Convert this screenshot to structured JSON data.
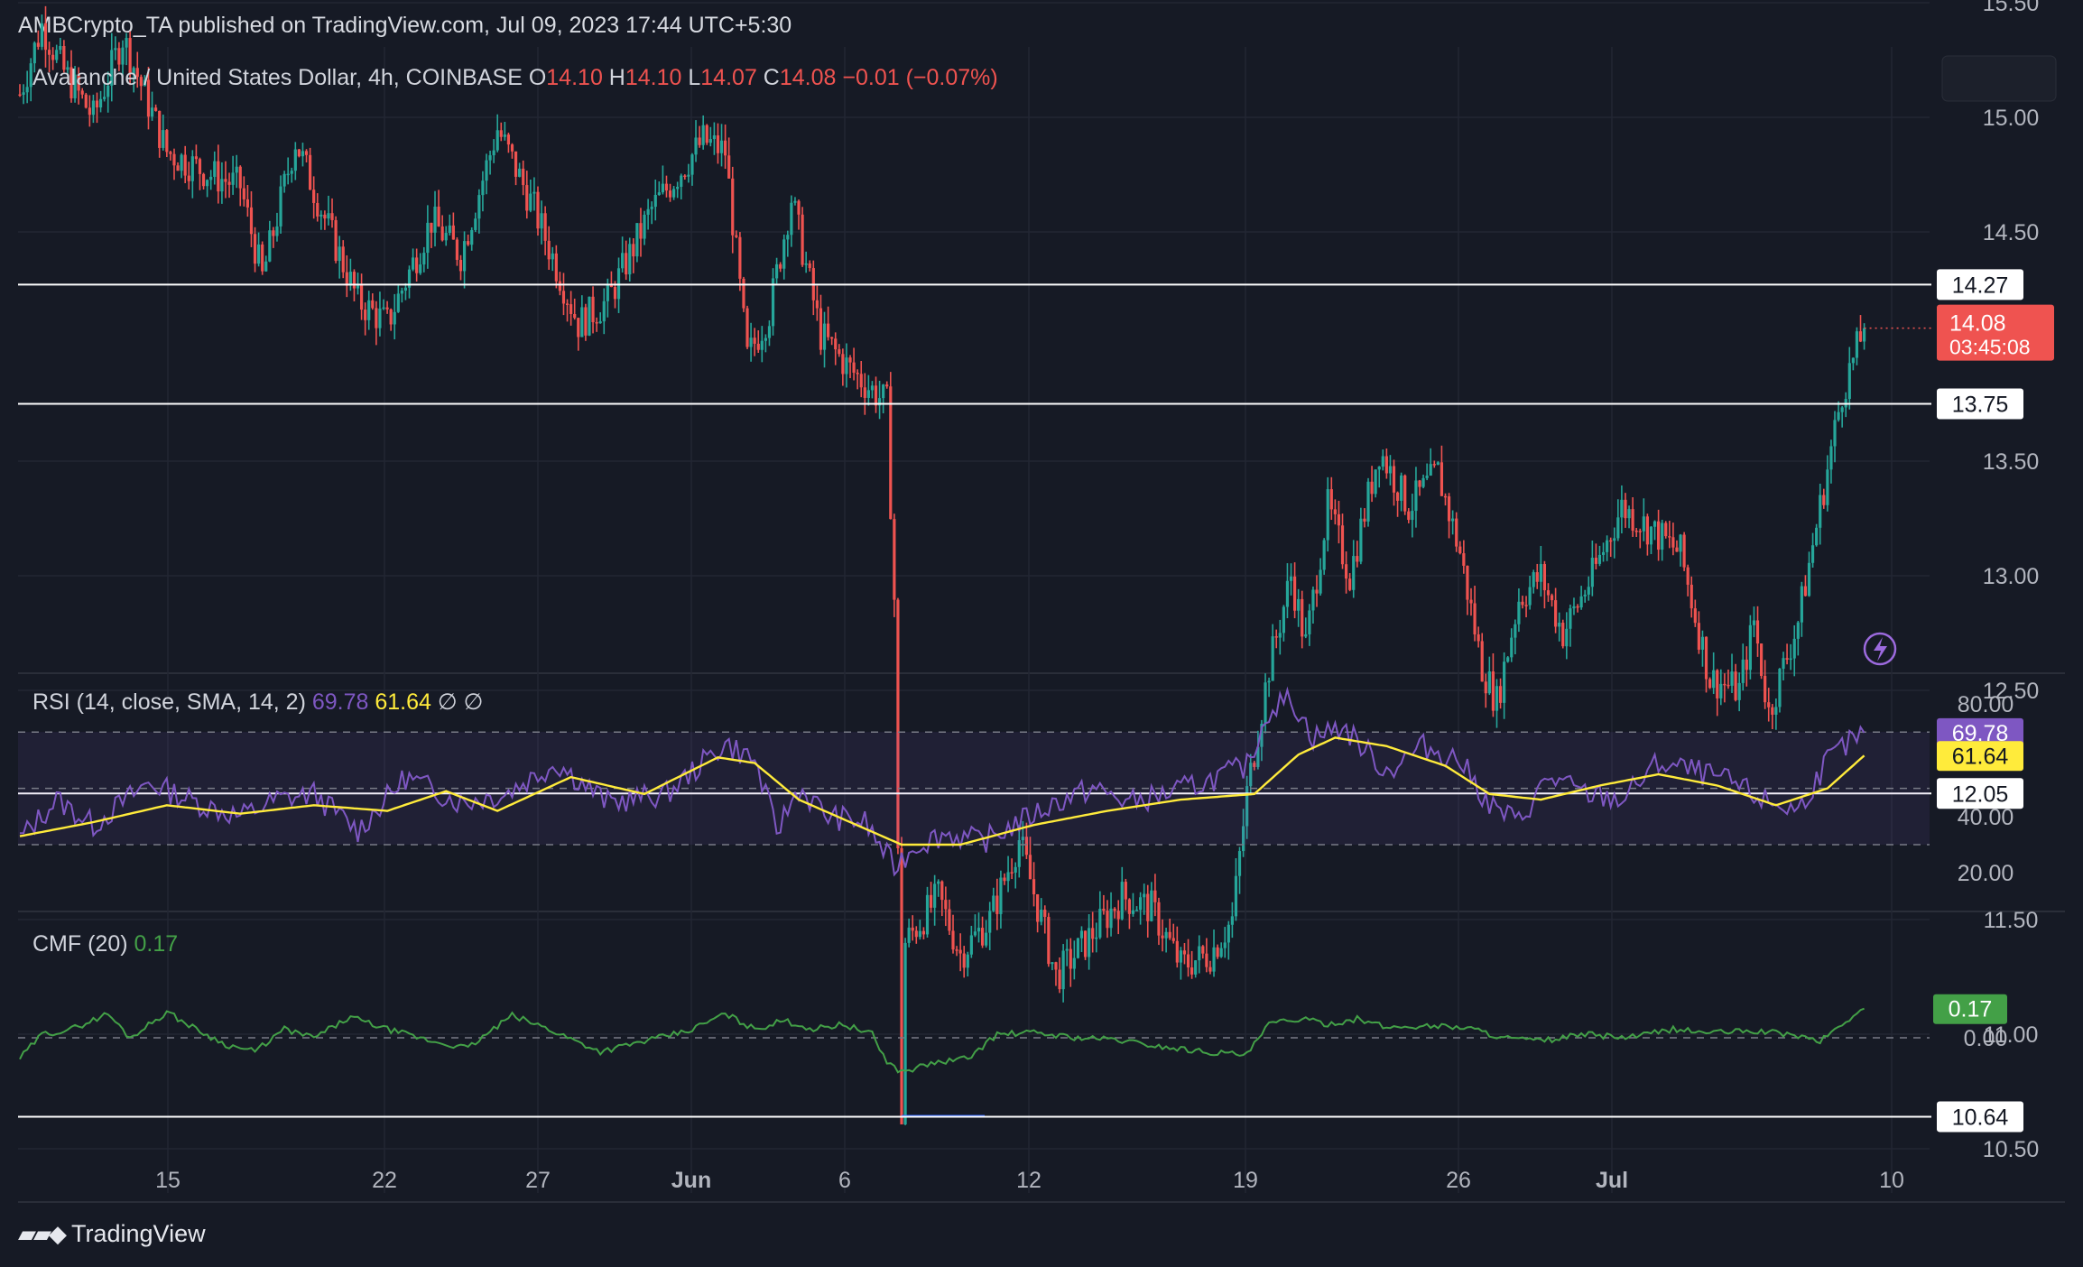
{
  "header": {
    "published_text": "AMBCrypto_TA published on TradingView.com, Jul 09, 2023 17:44 UTC+5:30"
  },
  "footer": {
    "brand": "TradingView",
    "logo_icon": "tradingview-logo-icon"
  },
  "colors": {
    "background": "#161a25",
    "bull": "#26a69a",
    "bear": "#ef5350",
    "rsi": "#7e57c2",
    "rsi_sma": "#ffeb3b",
    "cmf": "#43a047",
    "level_line": "#ffffff",
    "price_tag": "#ef5350"
  },
  "chart_data": [
    {
      "type": "candlestick",
      "pane": "price",
      "legend": {
        "symbol": "Avalanche / United States Dollar, 4h, COINBASE",
        "o_label": "O",
        "o_value": "14.10",
        "h_label": "H",
        "h_value": "14.10",
        "l_label": "L",
        "l_value": "14.07",
        "c_label": "C",
        "c_value": "14.08",
        "change": "−0.01 (−0.07%)"
      },
      "x_ticks": [
        "15",
        "22",
        "27",
        "Jun",
        "6",
        "12",
        "19",
        "26",
        "Jul",
        "10"
      ],
      "y_ticks": [
        "15.50",
        "15.00",
        "14.50",
        "13.50",
        "13.00",
        "12.50",
        "11.50",
        "11.00",
        "10.50"
      ],
      "ylim": [
        10.5,
        15.5
      ],
      "horizontal_levels": [
        "14.27",
        "13.75",
        "12.05",
        "10.64"
      ],
      "last_price": "14.08",
      "countdown": "03:45:08",
      "path_keypoints": [
        [
          0,
          15.1
        ],
        [
          6,
          15.4
        ],
        [
          12,
          15.2
        ],
        [
          20,
          15.0
        ],
        [
          28,
          15.35
        ],
        [
          40,
          14.85
        ],
        [
          52,
          14.75
        ],
        [
          60,
          14.7
        ],
        [
          66,
          14.3
        ],
        [
          75,
          14.9
        ],
        [
          82,
          14.6
        ],
        [
          92,
          14.2
        ],
        [
          100,
          14.1
        ],
        [
          112,
          14.55
        ],
        [
          120,
          14.4
        ],
        [
          130,
          14.95
        ],
        [
          140,
          14.6
        ],
        [
          152,
          14.1
        ],
        [
          160,
          14.2
        ],
        [
          172,
          14.6
        ],
        [
          186,
          14.9
        ],
        [
          192,
          14.85
        ],
        [
          198,
          13.95
        ],
        [
          204,
          14.15
        ],
        [
          210,
          14.65
        ],
        [
          218,
          14.05
        ],
        [
          226,
          13.9
        ],
        [
          236,
          13.75
        ],
        [
          238,
          12.9
        ],
        [
          240,
          10.64
        ],
        [
          241,
          11.4
        ],
        [
          250,
          11.6
        ],
        [
          256,
          11.35
        ],
        [
          264,
          11.5
        ],
        [
          272,
          11.85
        ],
        [
          278,
          11.5
        ],
        [
          282,
          11.25
        ],
        [
          290,
          11.4
        ],
        [
          300,
          11.6
        ],
        [
          308,
          11.55
        ],
        [
          316,
          11.3
        ],
        [
          324,
          11.35
        ],
        [
          330,
          11.5
        ],
        [
          334,
          12.05
        ],
        [
          340,
          12.6
        ],
        [
          346,
          13.0
        ],
        [
          350,
          12.7
        ],
        [
          356,
          13.3
        ],
        [
          362,
          13.0
        ],
        [
          370,
          13.55
        ],
        [
          378,
          13.3
        ],
        [
          386,
          13.45
        ],
        [
          392,
          13.1
        ],
        [
          398,
          12.6
        ],
        [
          402,
          12.45
        ],
        [
          408,
          12.9
        ],
        [
          414,
          13.0
        ],
        [
          420,
          12.75
        ],
        [
          428,
          13.0
        ],
        [
          436,
          13.3
        ],
        [
          444,
          13.2
        ],
        [
          452,
          13.1
        ],
        [
          460,
          12.55
        ],
        [
          468,
          12.5
        ],
        [
          472,
          12.8
        ],
        [
          476,
          12.4
        ],
        [
          484,
          12.8
        ],
        [
          490,
          13.3
        ],
        [
          496,
          13.8
        ],
        [
          502,
          14.08
        ]
      ]
    },
    {
      "type": "line",
      "pane": "rsi",
      "legend": {
        "name": "RSI (14, close, SMA, 14, 2)",
        "rsi_value": "69.78",
        "sma_value": "61.64",
        "extra1": "∅",
        "extra2": "∅"
      },
      "y_ticks": [
        "80.00",
        "40.00",
        "20.00"
      ],
      "bands": [
        70,
        50,
        30
      ],
      "ylim": [
        15,
        85
      ],
      "rsi_keypoints": [
        [
          0,
          32
        ],
        [
          10,
          46
        ],
        [
          20,
          37
        ],
        [
          35,
          52
        ],
        [
          50,
          44
        ],
        [
          60,
          40
        ],
        [
          70,
          46
        ],
        [
          80,
          48
        ],
        [
          92,
          35
        ],
        [
          105,
          54
        ],
        [
          120,
          45
        ],
        [
          132,
          48
        ],
        [
          146,
          59
        ],
        [
          160,
          45
        ],
        [
          176,
          48
        ],
        [
          192,
          66
        ],
        [
          200,
          60
        ],
        [
          206,
          35
        ],
        [
          212,
          50
        ],
        [
          220,
          40
        ],
        [
          230,
          38
        ],
        [
          238,
          22
        ],
        [
          244,
          30
        ],
        [
          252,
          34
        ],
        [
          262,
          31
        ],
        [
          272,
          38
        ],
        [
          282,
          45
        ],
        [
          292,
          50
        ],
        [
          302,
          45
        ],
        [
          312,
          48
        ],
        [
          322,
          52
        ],
        [
          334,
          58
        ],
        [
          340,
          78
        ],
        [
          346,
          82
        ],
        [
          352,
          68
        ],
        [
          360,
          72
        ],
        [
          372,
          56
        ],
        [
          382,
          65
        ],
        [
          392,
          60
        ],
        [
          400,
          44
        ],
        [
          408,
          38
        ],
        [
          416,
          54
        ],
        [
          426,
          48
        ],
        [
          436,
          46
        ],
        [
          446,
          59
        ],
        [
          456,
          56
        ],
        [
          466,
          52
        ],
        [
          474,
          46
        ],
        [
          484,
          42
        ],
        [
          492,
          60
        ],
        [
          498,
          66
        ],
        [
          502,
          69.78
        ]
      ],
      "sma_keypoints": [
        [
          0,
          33
        ],
        [
          20,
          38
        ],
        [
          40,
          44
        ],
        [
          60,
          41
        ],
        [
          80,
          44
        ],
        [
          100,
          42
        ],
        [
          116,
          49
        ],
        [
          130,
          42
        ],
        [
          150,
          54
        ],
        [
          170,
          48
        ],
        [
          190,
          61
        ],
        [
          200,
          59
        ],
        [
          212,
          46
        ],
        [
          226,
          38
        ],
        [
          240,
          30
        ],
        [
          256,
          30
        ],
        [
          276,
          37
        ],
        [
          296,
          42
        ],
        [
          316,
          46
        ],
        [
          336,
          48
        ],
        [
          348,
          62
        ],
        [
          358,
          68
        ],
        [
          372,
          65
        ],
        [
          388,
          58
        ],
        [
          400,
          48
        ],
        [
          414,
          46
        ],
        [
          430,
          51
        ],
        [
          446,
          55
        ],
        [
          462,
          51
        ],
        [
          478,
          44
        ],
        [
          492,
          50
        ],
        [
          502,
          61.64
        ]
      ]
    },
    {
      "type": "line",
      "pane": "cmf",
      "legend": {
        "name": "CMF (20)",
        "value": "0.17"
      },
      "y_ticks": [
        "0.00"
      ],
      "ylim": [
        -0.25,
        0.25
      ],
      "cmf_keypoints": [
        [
          0,
          -0.12
        ],
        [
          6,
          0.02
        ],
        [
          14,
          0.05
        ],
        [
          24,
          0.14
        ],
        [
          30,
          0.0
        ],
        [
          40,
          0.15
        ],
        [
          48,
          0.05
        ],
        [
          56,
          -0.04
        ],
        [
          64,
          -0.08
        ],
        [
          72,
          0.05
        ],
        [
          80,
          0.0
        ],
        [
          90,
          0.12
        ],
        [
          100,
          0.05
        ],
        [
          112,
          -0.02
        ],
        [
          122,
          -0.06
        ],
        [
          134,
          0.13
        ],
        [
          144,
          0.05
        ],
        [
          158,
          -0.08
        ],
        [
          170,
          -0.02
        ],
        [
          182,
          0.04
        ],
        [
          192,
          0.14
        ],
        [
          200,
          0.05
        ],
        [
          208,
          0.1
        ],
        [
          216,
          0.05
        ],
        [
          224,
          0.08
        ],
        [
          232,
          0.02
        ],
        [
          236,
          -0.14
        ],
        [
          240,
          -0.2
        ],
        [
          248,
          -0.15
        ],
        [
          258,
          -0.12
        ],
        [
          266,
          0.02
        ],
        [
          276,
          0.03
        ],
        [
          288,
          0.0
        ],
        [
          298,
          -0.01
        ],
        [
          310,
          -0.05
        ],
        [
          322,
          -0.08
        ],
        [
          334,
          -0.1
        ],
        [
          340,
          0.08
        ],
        [
          348,
          0.11
        ],
        [
          356,
          0.08
        ],
        [
          364,
          0.11
        ],
        [
          372,
          0.06
        ],
        [
          384,
          0.07
        ],
        [
          394,
          0.06
        ],
        [
          404,
          0.0
        ],
        [
          414,
          -0.02
        ],
        [
          426,
          0.02
        ],
        [
          438,
          0.0
        ],
        [
          450,
          0.05
        ],
        [
          460,
          0.03
        ],
        [
          472,
          0.04
        ],
        [
          482,
          0.02
        ],
        [
          490,
          -0.02
        ],
        [
          496,
          0.08
        ],
        [
          502,
          0.17
        ]
      ]
    }
  ]
}
